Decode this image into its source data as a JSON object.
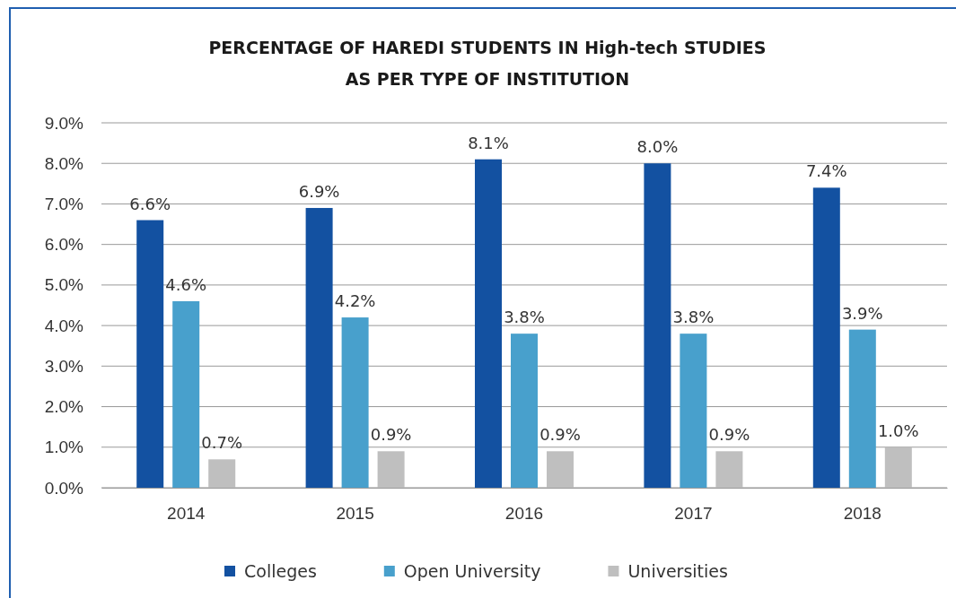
{
  "chart_data": {
    "type": "bar",
    "title": "PERCENTAGE OF HAREDI STUDENTS IN High-tech STUDIES\nAS PER TYPE OF INSTITUTION",
    "categories": [
      "2014",
      "2015",
      "2016",
      "2017",
      "2018"
    ],
    "series": [
      {
        "name": "Colleges",
        "color": "#1351a1",
        "values": [
          6.6,
          6.9,
          8.1,
          8.0,
          7.4
        ],
        "value_labels": [
          "6.6%",
          "6.9%",
          "8.1%",
          "8.0%",
          "7.4%"
        ]
      },
      {
        "name": "Open University",
        "color": "#48a0cc",
        "values": [
          4.6,
          4.2,
          3.8,
          3.8,
          3.9
        ],
        "value_labels": [
          "4.6%",
          "4.2%",
          "3.8%",
          "3.8%",
          "3.9%"
        ]
      },
      {
        "name": "Universities",
        "color": "#bfbfbf",
        "values": [
          0.7,
          0.9,
          0.9,
          0.9,
          1.0
        ],
        "value_labels": [
          "0.7%",
          "0.9%",
          "0.9%",
          "0.9%",
          "1.0%"
        ]
      }
    ],
    "ylim": [
      0,
      9
    ],
    "yticks": [
      {
        "value": 0,
        "label": "0.0%"
      },
      {
        "value": 1,
        "label": "1.0%"
      },
      {
        "value": 2,
        "label": "2.0%"
      },
      {
        "value": 3,
        "label": "3.0%"
      },
      {
        "value": 4,
        "label": "4.0%"
      },
      {
        "value": 5,
        "label": "5.0%"
      },
      {
        "value": 6,
        "label": "6.0%"
      },
      {
        "value": 7,
        "label": "7.0%"
      },
      {
        "value": 8,
        "label": "8.0%"
      },
      {
        "value": 9,
        "label": "9.0%"
      }
    ],
    "grid": "y",
    "legend": "bottom"
  }
}
